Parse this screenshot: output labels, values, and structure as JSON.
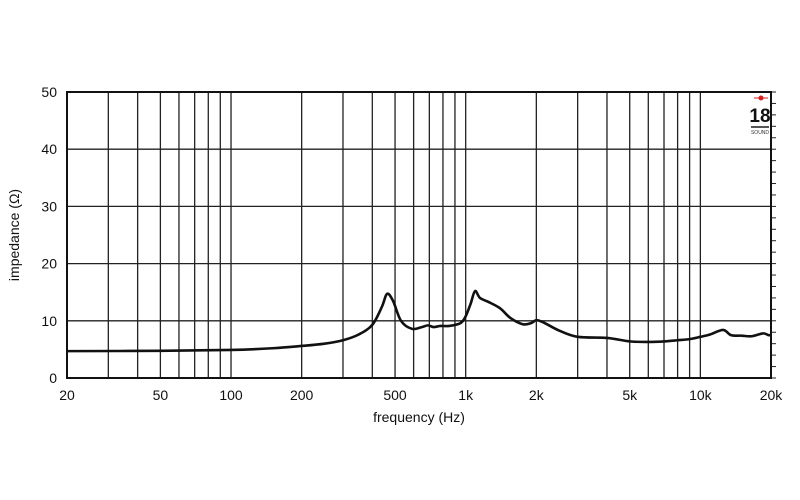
{
  "chart_data": {
    "type": "line",
    "xlabel": "frequency (Hz)",
    "ylabel": "impedance (Ω)",
    "xscale": "log",
    "xlim": [
      20,
      20000
    ],
    "ylim": [
      0,
      50
    ],
    "grid": true,
    "x_gridlines": [
      20,
      30,
      40,
      50,
      60,
      70,
      80,
      90,
      100,
      200,
      300,
      400,
      500,
      600,
      700,
      800,
      900,
      1000,
      2000,
      3000,
      4000,
      5000,
      6000,
      7000,
      8000,
      9000,
      10000,
      20000
    ],
    "x_ticks": [
      {
        "value": 20,
        "label": "20"
      },
      {
        "value": 50,
        "label": "50"
      },
      {
        "value": 100,
        "label": "100"
      },
      {
        "value": 200,
        "label": "200"
      },
      {
        "value": 500,
        "label": "500"
      },
      {
        "value": 1000,
        "label": "1k"
      },
      {
        "value": 2000,
        "label": "2k"
      },
      {
        "value": 5000,
        "label": "5k"
      },
      {
        "value": 10000,
        "label": "10k"
      },
      {
        "value": 20000,
        "label": "20k"
      }
    ],
    "y_ticks": [
      0,
      10,
      20,
      30,
      40,
      50
    ],
    "line_color": "#111111",
    "series": [
      {
        "x": [
          20,
          50,
          100,
          150,
          200,
          250,
          300,
          350,
          400,
          440,
          462,
          490,
          530,
          590,
          650,
          690,
          730,
          780,
          850,
          950,
          1000,
          1050,
          1096,
          1150,
          1250,
          1400,
          1550,
          1750,
          1900,
          2000,
          2150,
          2500,
          3000,
          4000,
          5000,
          6000,
          7000,
          8000,
          9000,
          10000,
          11000,
          12500,
          13500,
          15000,
          16500,
          18500,
          19500,
          20000
        ],
        "y": [
          4.7,
          4.75,
          4.9,
          5.2,
          5.6,
          6.0,
          6.6,
          7.6,
          9.3,
          12.5,
          14.7,
          13.5,
          10.0,
          8.6,
          8.9,
          9.2,
          8.9,
          9.1,
          9.1,
          9.6,
          10.8,
          13.0,
          15.2,
          14.0,
          13.3,
          12.2,
          10.5,
          9.4,
          9.6,
          10.1,
          9.7,
          8.3,
          7.2,
          7.0,
          6.4,
          6.3,
          6.4,
          6.6,
          6.8,
          7.2,
          7.6,
          8.4,
          7.5,
          7.4,
          7.3,
          7.8,
          7.5,
          7.5
        ]
      }
    ]
  },
  "logo": {
    "number": "18",
    "text": "SOUND",
    "color": "#d81e1e"
  }
}
